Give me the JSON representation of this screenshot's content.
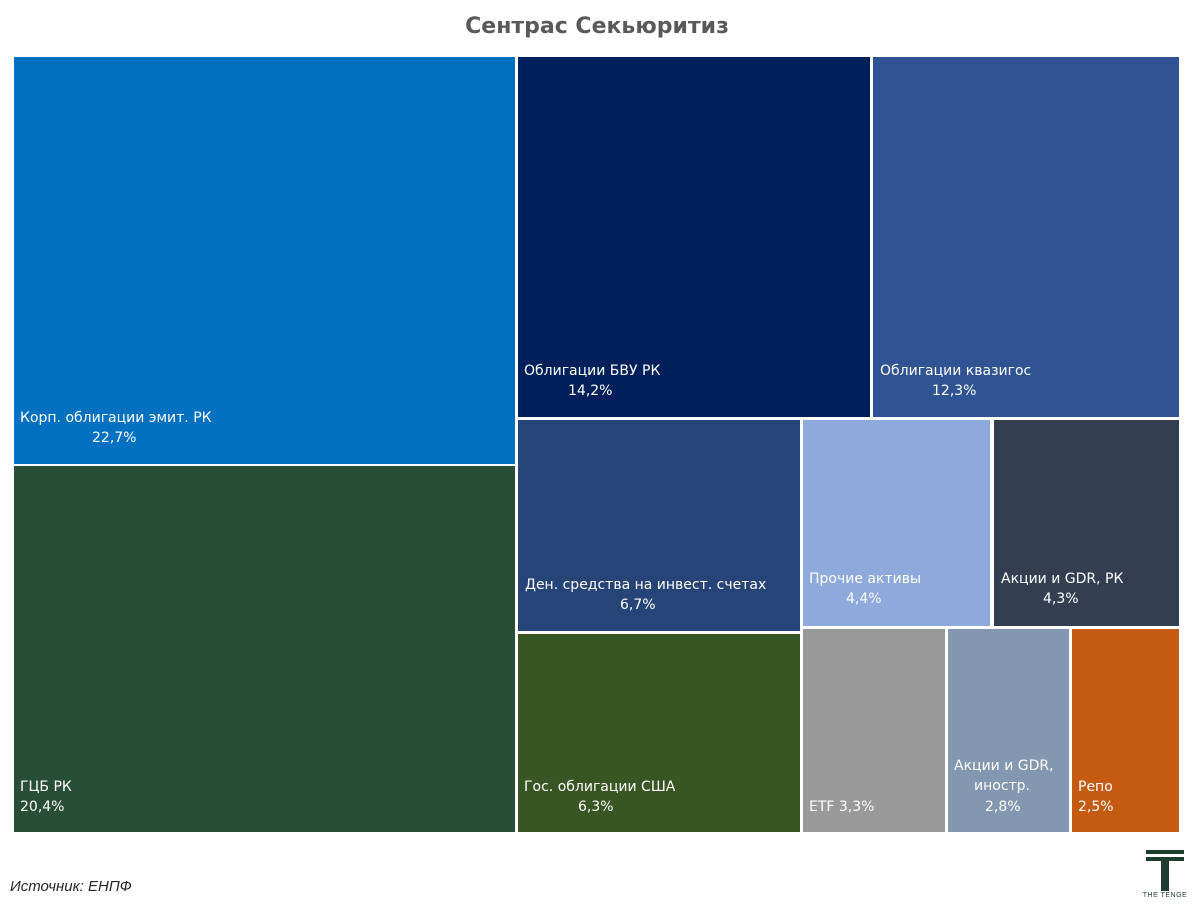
{
  "chart_data": {
    "type": "treemap",
    "title": "Сентрас Секьюритиз",
    "unit": "%",
    "items": [
      {
        "name": "Корп. облигации эмит. РК",
        "value_label": "22,7%",
        "value": 22.7,
        "color": "#0070C0"
      },
      {
        "name": "ГЦБ РК",
        "value_label": "20,4%",
        "value": 20.4,
        "color": "#294E37"
      },
      {
        "name": "Облигации БВУ РК",
        "value_label": "14,2%",
        "value": 14.2,
        "color": "#00205B"
      },
      {
        "name": "Облигации квазигос",
        "value_label": "12,3%",
        "value": 12.3,
        "color": "#2F5393"
      },
      {
        "name": "Ден. средства на инвест. счетах",
        "value_label": "6,7%",
        "value": 6.7,
        "color": "#264478"
      },
      {
        "name": "Гос. облигации США",
        "value_label": "6,3%",
        "value": 6.3,
        "color": "#375623"
      },
      {
        "name": "Прочие активы",
        "value_label": "4,4%",
        "value": 4.4,
        "color": "#8EA9DB"
      },
      {
        "name": "Акции и GDR, РК",
        "value_label": "4,3%",
        "value": 4.3,
        "color": "#333F50"
      },
      {
        "name": "ETF",
        "value_label": "3,3%",
        "value": 3.3,
        "color": "#999999"
      },
      {
        "name": "Акции и GDR, иностр.",
        "value_label": "2,8%",
        "value": 2.8,
        "color": "#8497B0"
      },
      {
        "name": "Репо",
        "value_label": "2,5%",
        "value": 2.5,
        "color": "#C55A11"
      }
    ]
  },
  "source": "Источник: ЕНПФ",
  "logo": {
    "text": "THE TENGE",
    "color": "#1E3D2F"
  }
}
